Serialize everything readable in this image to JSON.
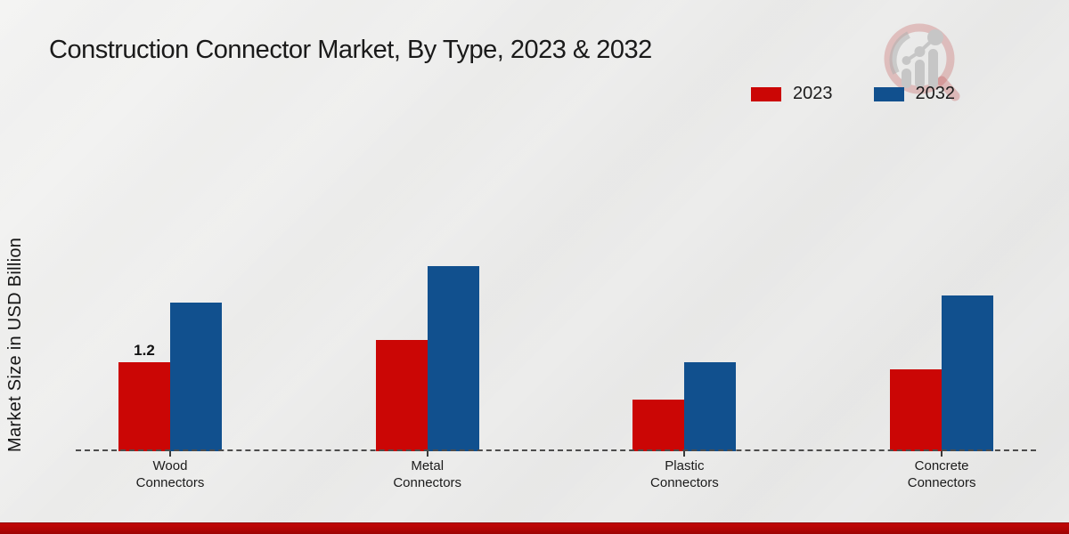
{
  "header": {
    "title": "Construction Connector Market, By Type, 2023 & 2032"
  },
  "y_axis": {
    "label": "Market Size in USD Billion"
  },
  "legend": {
    "items": [
      {
        "label": "2023",
        "color": "#cb0605"
      },
      {
        "label": "2032",
        "color": "#11508e"
      }
    ]
  },
  "colors": {
    "series_2023": "#cb0605",
    "series_2032": "#11508e",
    "footer_bar": "#b00505",
    "axis_line": "#4d4d4d"
  },
  "logo": {
    "name": "magnifier-growth-chart-logo"
  },
  "chart_data": {
    "type": "bar",
    "title": "Construction Connector Market, By Type, 2023 & 2032",
    "xlabel": "",
    "ylabel": "Market Size in USD Billion",
    "categories": [
      "Wood Connectors",
      "Metal Connectors",
      "Plastic Connectors",
      "Concrete Connectors"
    ],
    "series": [
      {
        "name": "2023",
        "color": "#cb0605",
        "values": [
          1.2,
          1.5,
          0.7,
          1.1
        ]
      },
      {
        "name": "2032",
        "color": "#11508e",
        "values": [
          2.0,
          2.5,
          1.2,
          2.1
        ]
      }
    ],
    "annotations": [
      {
        "series": "2023",
        "category": "Wood Connectors",
        "text": "1.2"
      }
    ],
    "ylim": [
      0,
      3
    ],
    "grid": false,
    "baseline_style": "dashed",
    "legend_position": "top-right"
  }
}
